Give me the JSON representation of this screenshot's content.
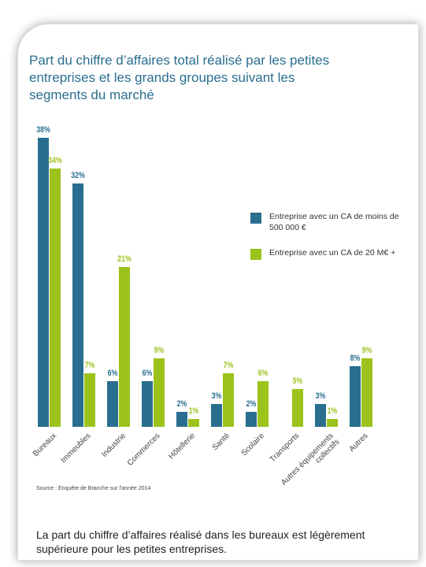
{
  "chart_data": {
    "type": "bar",
    "title": "Part du chiffre d’affaires total réalisé par les petites entreprises et les grands groupes suivant les segments du marché",
    "categories": [
      "Bureaux",
      "Immeubles",
      "Industrie",
      "Commerces",
      "Hôtellerie",
      "Santé",
      "Scolaire",
      "Transports",
      "Autres équipements collectifs",
      "Autres"
    ],
    "series": [
      {
        "name": "Entreprise avec un CA de moins de 500 000 €",
        "color": "#2a6e8f",
        "values": [
          38,
          32,
          6,
          6,
          2,
          3,
          2,
          null,
          3,
          8
        ],
        "value_labels": [
          "38%",
          "32%",
          "6%",
          "6%",
          "2%",
          "3%",
          "2%",
          null,
          "3%",
          "8%"
        ]
      },
      {
        "name": "Entreprise avec un CA de 20 M€ +",
        "color": "#9bc31c",
        "values": [
          34,
          7,
          21,
          9,
          1,
          7,
          6,
          5,
          1,
          9
        ],
        "value_labels": [
          "34%",
          "7%",
          "21%",
          "9%",
          "1%",
          "7%",
          "6%",
          "5%",
          "1%",
          "9%"
        ]
      }
    ],
    "legend": "right",
    "source": "Source : Enquête de Branche sur l'année 2014"
  },
  "caption": "La part du chiffre d’affaires réalisé dans les bureaux est légèrement supérieure pour les petites entreprises."
}
